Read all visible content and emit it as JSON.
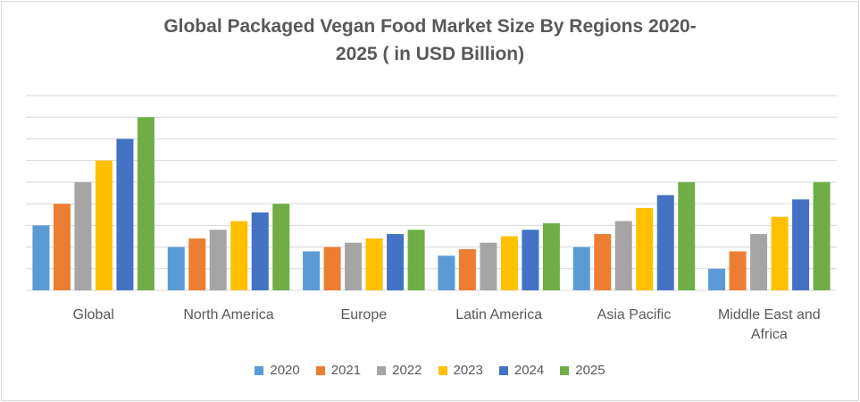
{
  "chart_data": {
    "type": "bar",
    "title_line1": "Global Packaged Vegan Food Market Size By Regions 2020-",
    "title_line2": "2025 ( in USD Billion)",
    "categories": [
      "Global",
      "North America",
      "Europe",
      "Latin America",
      "Asia Pacific",
      "Middle East and Africa"
    ],
    "category_lines": [
      [
        "Global"
      ],
      [
        "North America"
      ],
      [
        "Europe"
      ],
      [
        "Latin America"
      ],
      [
        "Asia Pacific"
      ],
      [
        "Middle East and",
        "Africa"
      ]
    ],
    "series": [
      {
        "name": "2020",
        "color": "#5b9bd5",
        "values": [
          3.0,
          2.0,
          1.8,
          1.6,
          2.0,
          1.0
        ]
      },
      {
        "name": "2021",
        "color": "#ed7d31",
        "values": [
          4.0,
          2.4,
          2.0,
          1.9,
          2.6,
          1.8
        ]
      },
      {
        "name": "2022",
        "color": "#a5a5a5",
        "values": [
          5.0,
          2.8,
          2.2,
          2.2,
          3.2,
          2.6
        ]
      },
      {
        "name": "2023",
        "color": "#ffc000",
        "values": [
          6.0,
          3.2,
          2.4,
          2.5,
          3.8,
          3.4
        ]
      },
      {
        "name": "2024",
        "color": "#4472c4",
        "values": [
          7.0,
          3.6,
          2.6,
          2.8,
          4.4,
          4.2
        ]
      },
      {
        "name": "2025",
        "color": "#70ad47",
        "values": [
          8.0,
          4.0,
          2.8,
          3.1,
          5.0,
          5.0
        ]
      }
    ],
    "ylim": [
      0,
      9
    ],
    "grid": true,
    "legend_position": "bottom"
  }
}
